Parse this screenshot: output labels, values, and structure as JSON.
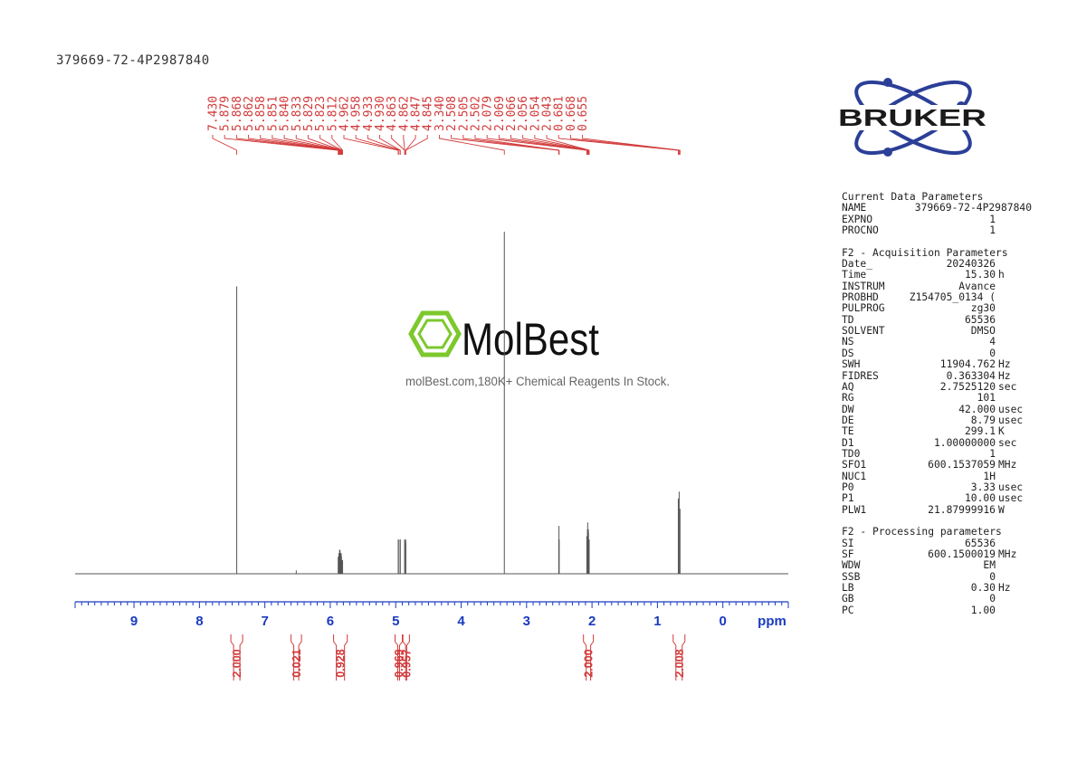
{
  "sample_title": "379669-72-4P2987840",
  "brand": {
    "name": "BRUKER",
    "primary": "#2b3f98",
    "text_color": "#1a1a1a"
  },
  "watermark": {
    "name": "MolBest",
    "tagline": "molBest.com,180K+ Chemical Reagents In Stock.",
    "icon": "benzene-ring-icon",
    "icon_color": "#7dc82d"
  },
  "colors": {
    "spectrum": "#555555",
    "axis": "#1a3bbf",
    "peak_labels": "#d23a3a",
    "integrals": "#d23a3a",
    "parameters": "#222222"
  },
  "chart_data": {
    "type": "line",
    "xlabel": "ppm",
    "xlim": [
      9.9,
      -1.0
    ],
    "axis_reversed": true,
    "major_ticks": [
      9,
      8,
      7,
      6,
      5,
      4,
      3,
      2,
      1,
      0
    ],
    "ylim": [
      0,
      1.0
    ],
    "grid": false,
    "series": [
      {
        "peaks": [
          {
            "ppm": 7.43,
            "height": 0.84
          },
          {
            "ppm": 6.52,
            "height": 0.01
          },
          {
            "ppm": 5.879,
            "height": 0.05
          },
          {
            "ppm": 5.868,
            "height": 0.06
          },
          {
            "ppm": 5.862,
            "height": 0.06
          },
          {
            "ppm": 5.858,
            "height": 0.07
          },
          {
            "ppm": 5.851,
            "height": 0.07
          },
          {
            "ppm": 5.84,
            "height": 0.06
          },
          {
            "ppm": 5.833,
            "height": 0.06
          },
          {
            "ppm": 5.829,
            "height": 0.05
          },
          {
            "ppm": 5.823,
            "height": 0.04
          },
          {
            "ppm": 5.812,
            "height": 0.04
          },
          {
            "ppm": 4.962,
            "height": 0.1
          },
          {
            "ppm": 4.958,
            "height": 0.1
          },
          {
            "ppm": 4.933,
            "height": 0.1
          },
          {
            "ppm": 4.93,
            "height": 0.1
          },
          {
            "ppm": 4.863,
            "height": 0.1
          },
          {
            "ppm": 4.862,
            "height": 0.1
          },
          {
            "ppm": 4.847,
            "height": 0.1
          },
          {
            "ppm": 4.845,
            "height": 0.09
          },
          {
            "ppm": 3.34,
            "height": 1.0
          },
          {
            "ppm": 2.508,
            "height": 0.1
          },
          {
            "ppm": 2.505,
            "height": 0.14
          },
          {
            "ppm": 2.502,
            "height": 0.1
          },
          {
            "ppm": 2.079,
            "height": 0.11
          },
          {
            "ppm": 2.069,
            "height": 0.13
          },
          {
            "ppm": 2.066,
            "height": 0.15
          },
          {
            "ppm": 2.056,
            "height": 0.13
          },
          {
            "ppm": 2.054,
            "height": 0.12
          },
          {
            "ppm": 2.043,
            "height": 0.1
          },
          {
            "ppm": 0.681,
            "height": 0.22
          },
          {
            "ppm": 0.668,
            "height": 0.24
          },
          {
            "ppm": 0.655,
            "height": 0.19
          }
        ]
      }
    ],
    "peak_labels": [
      "7.430",
      "5.879",
      "5.868",
      "5.862",
      "5.858",
      "5.851",
      "5.840",
      "5.833",
      "5.829",
      "5.823",
      "5.812",
      "4.962",
      "4.958",
      "4.933",
      "4.930",
      "4.863",
      "4.862",
      "4.847",
      "4.845",
      "3.340",
      "2.508",
      "2.505",
      "2.502",
      "2.079",
      "2.069",
      "2.066",
      "2.056",
      "2.054",
      "2.043",
      "0.681",
      "0.668",
      "0.655"
    ],
    "integrals": [
      {
        "from": 7.52,
        "to": 7.34,
        "value": "2.000"
      },
      {
        "from": 6.6,
        "to": 6.44,
        "value": "0.021"
      },
      {
        "from": 5.95,
        "to": 5.74,
        "value": "0.928"
      },
      {
        "from": 5.01,
        "to": 4.9,
        "value": "0.969"
      },
      {
        "from": 4.89,
        "to": 4.79,
        "value": "0.957"
      },
      {
        "from": 2.13,
        "to": 1.98,
        "value": "2.000"
      },
      {
        "from": 0.76,
        "to": 0.58,
        "value": "2.008"
      }
    ]
  },
  "params": {
    "sections": [
      {
        "heading": "Current Data Parameters",
        "rows": [
          {
            "name": "NAME",
            "value": "379669-72-4P2987840",
            "unit": "",
            "full": true
          },
          {
            "name": "EXPNO",
            "value": "1",
            "unit": ""
          },
          {
            "name": "PROCNO",
            "value": "1",
            "unit": ""
          }
        ]
      },
      {
        "heading": "F2 - Acquisition Parameters",
        "rows": [
          {
            "name": "Date_",
            "value": "20240326",
            "unit": ""
          },
          {
            "name": "Time",
            "value": "15.30",
            "unit": "h"
          },
          {
            "name": "INSTRUM",
            "value": "Avance",
            "unit": ""
          },
          {
            "name": "PROBHD",
            "value": "Z154705_0134 (",
            "unit": ""
          },
          {
            "name": "PULPROG",
            "value": "zg30",
            "unit": ""
          },
          {
            "name": "TD",
            "value": "65536",
            "unit": ""
          },
          {
            "name": "SOLVENT",
            "value": "DMSO",
            "unit": ""
          },
          {
            "name": "NS",
            "value": "4",
            "unit": ""
          },
          {
            "name": "DS",
            "value": "0",
            "unit": ""
          },
          {
            "name": "SWH",
            "value": "11904.762",
            "unit": "Hz"
          },
          {
            "name": "FIDRES",
            "value": "0.363304",
            "unit": "Hz"
          },
          {
            "name": "AQ",
            "value": "2.7525120",
            "unit": "sec"
          },
          {
            "name": "RG",
            "value": "101",
            "unit": ""
          },
          {
            "name": "DW",
            "value": "42.000",
            "unit": "usec"
          },
          {
            "name": "DE",
            "value": "8.79",
            "unit": "usec"
          },
          {
            "name": "TE",
            "value": "299.1",
            "unit": "K"
          },
          {
            "name": "D1",
            "value": "1.00000000",
            "unit": "sec"
          },
          {
            "name": "TD0",
            "value": "1",
            "unit": ""
          },
          {
            "name": "SFO1",
            "value": "600.1537059",
            "unit": "MHz"
          },
          {
            "name": "NUC1",
            "value": "1H",
            "unit": ""
          },
          {
            "name": "P0",
            "value": "3.33",
            "unit": "usec"
          },
          {
            "name": "P1",
            "value": "10.00",
            "unit": "usec"
          },
          {
            "name": "PLW1",
            "value": "21.87999916",
            "unit": "W"
          }
        ]
      },
      {
        "heading": "F2 - Processing parameters",
        "rows": [
          {
            "name": "SI",
            "value": "65536",
            "unit": ""
          },
          {
            "name": "SF",
            "value": "600.1500019",
            "unit": "MHz"
          },
          {
            "name": "WDW",
            "value": "EM",
            "unit": ""
          },
          {
            "name": "SSB",
            "value": "0",
            "unit": ""
          },
          {
            "name": "LB",
            "value": "0.30",
            "unit": "Hz"
          },
          {
            "name": "GB",
            "value": "0",
            "unit": ""
          },
          {
            "name": "PC",
            "value": "1.00",
            "unit": ""
          }
        ]
      }
    ]
  }
}
